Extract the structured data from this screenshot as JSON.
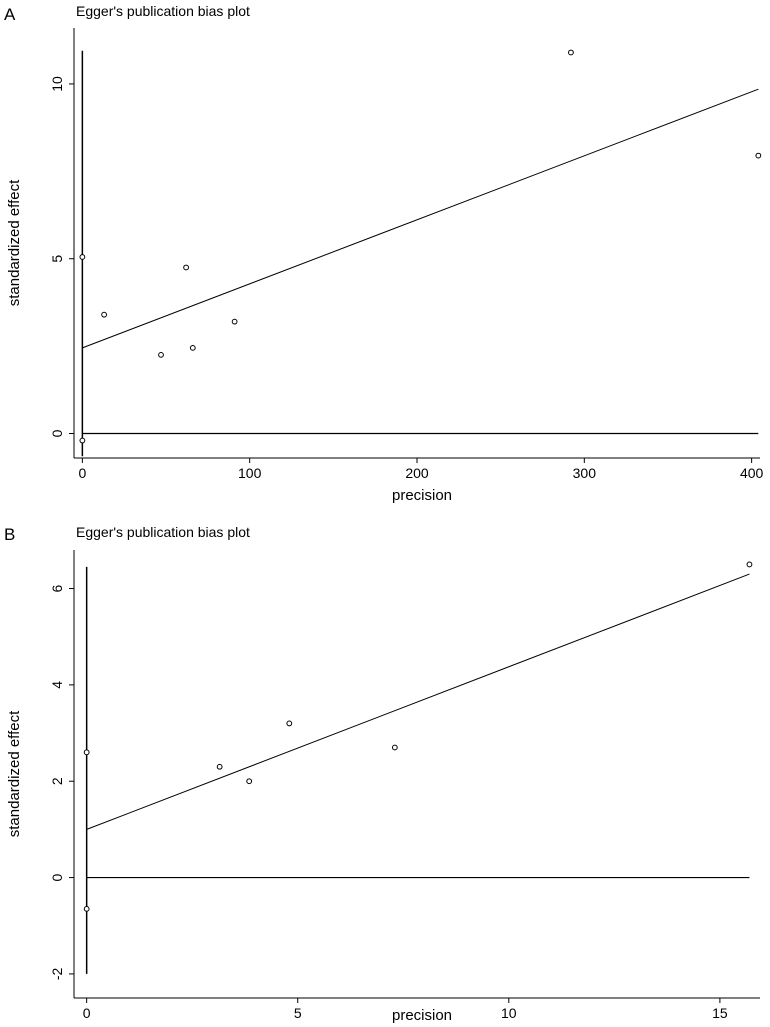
{
  "chart_data": [
    {
      "panel": "A",
      "type": "scatter",
      "title": "Egger's publication bias plot",
      "xlabel": "precision",
      "ylabel": "standardized effect",
      "xlim": [
        -5,
        405
      ],
      "ylim": [
        -0.7,
        11.6
      ],
      "xticks": [
        0,
        100,
        200,
        300,
        400
      ],
      "yticks": [
        0,
        5,
        10
      ],
      "points": [
        {
          "x": 0,
          "y": 5.05
        },
        {
          "x": 0,
          "y": -0.2
        },
        {
          "x": 13,
          "y": 3.4
        },
        {
          "x": 47,
          "y": 2.25
        },
        {
          "x": 62,
          "y": 4.75
        },
        {
          "x": 66,
          "y": 2.45
        },
        {
          "x": 91,
          "y": 3.2
        },
        {
          "x": 292,
          "y": 10.9
        },
        {
          "x": 404,
          "y": 7.95
        }
      ],
      "fit_line": {
        "x": [
          0,
          404
        ],
        "y": [
          2.45,
          9.85
        ]
      },
      "ref_line_y0": {
        "x": [
          0,
          404
        ],
        "y": [
          0,
          0
        ]
      },
      "ref_line_x0": {
        "x": [
          0,
          0
        ],
        "y": [
          -0.65,
          10.95
        ]
      }
    },
    {
      "panel": "B",
      "type": "scatter",
      "title": "Egger's publication bias plot",
      "xlabel": "precision",
      "ylabel": "standardized effect",
      "xlim": [
        -0.3,
        15.95
      ],
      "ylim": [
        -2.5,
        6.8
      ],
      "xticks": [
        0,
        5,
        10,
        15
      ],
      "yticks": [
        -2,
        0,
        2,
        4,
        6
      ],
      "points": [
        {
          "x": 0,
          "y": 2.6
        },
        {
          "x": 0,
          "y": -0.65
        },
        {
          "x": 3.15,
          "y": 2.3
        },
        {
          "x": 3.85,
          "y": 2.0
        },
        {
          "x": 4.8,
          "y": 3.2
        },
        {
          "x": 7.3,
          "y": 2.7
        },
        {
          "x": 15.7,
          "y": 6.5
        }
      ],
      "fit_line": {
        "x": [
          0,
          15.7
        ],
        "y": [
          1.0,
          6.3
        ]
      },
      "ref_line_y0": {
        "x": [
          0,
          15.7
        ],
        "y": [
          0,
          0
        ]
      },
      "ref_line_x0": {
        "x": [
          0,
          0
        ],
        "y": [
          -2.0,
          6.45
        ]
      }
    }
  ]
}
